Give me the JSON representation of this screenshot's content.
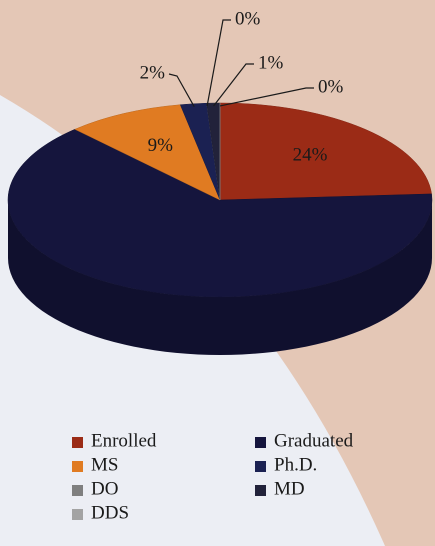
{
  "chart_data": {
    "type": "pie",
    "categories": [
      "Enrolled",
      "Graduated",
      "MS",
      "Ph.D.",
      "DO",
      "MD",
      "DDS"
    ],
    "values": [
      24,
      64,
      9,
      2,
      0,
      1,
      0
    ],
    "value_labels": [
      "24%",
      null,
      "9%",
      "2%",
      "0%",
      "1%",
      "0%"
    ],
    "colors": [
      "#9b2b16",
      "#15153d",
      "#e07b22",
      "#1b2152",
      "#7f7f7f",
      "#22223a",
      "#a3a3a3"
    ],
    "legend": "bottom"
  }
}
